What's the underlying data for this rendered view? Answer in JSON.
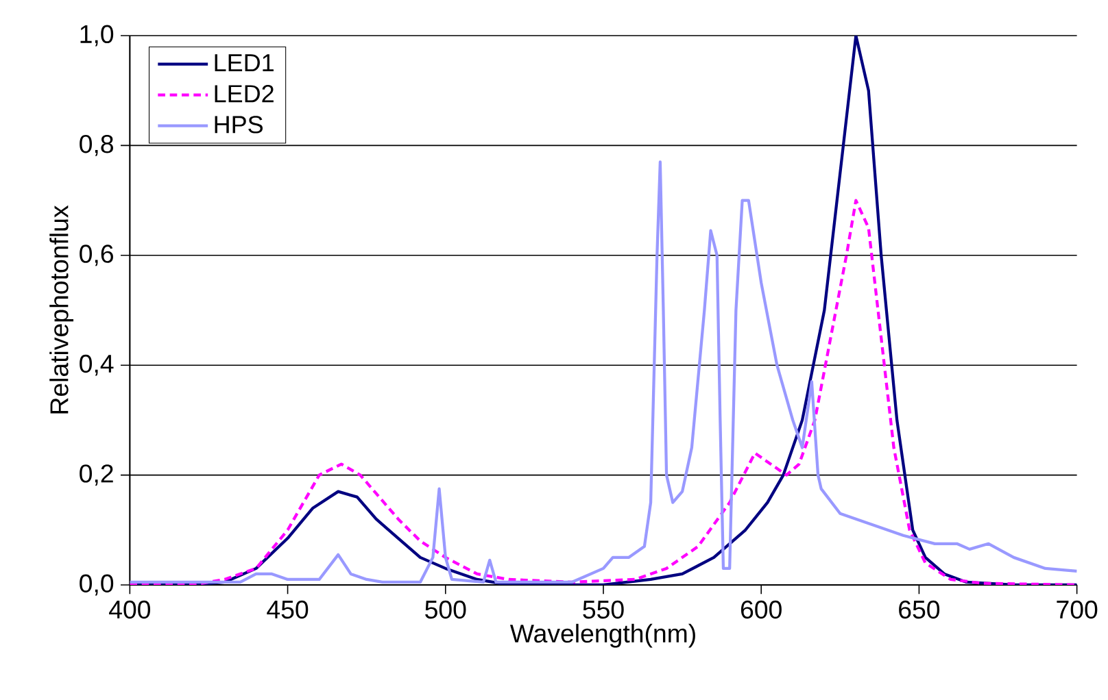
{
  "chart_data": {
    "type": "line",
    "xlabel": "Wavelength(nm)",
    "ylabel": "Relativephotonflux",
    "xlim": [
      400,
      700
    ],
    "xticks": [
      400,
      450,
      500,
      550,
      600,
      650,
      700
    ],
    "ylim": [
      0,
      1
    ],
    "yticks": [
      {
        "value": 0,
        "label": "0,0"
      },
      {
        "value": 0.2,
        "label": "0,2"
      },
      {
        "value": 0.4,
        "label": "0,4"
      },
      {
        "value": 0.6,
        "label": "0,6"
      },
      {
        "value": 0.8,
        "label": "0,8"
      },
      {
        "value": 1,
        "label": "1,0"
      }
    ],
    "grid": "y",
    "legend": "top left",
    "marker": "none",
    "series": [
      {
        "name": "LED1",
        "color": "#000080",
        "line_style": "solid",
        "x": [
          400,
          420,
          430,
          440,
          450,
          458,
          466,
          472,
          478,
          485,
          492,
          500,
          510,
          520,
          550,
          565,
          575,
          585,
          595,
          602,
          607,
          613,
          620,
          626,
          630,
          634,
          638,
          643,
          648,
          652,
          658,
          665,
          680,
          700
        ],
        "values": [
          0,
          0,
          0.005,
          0.03,
          0.085,
          0.14,
          0.17,
          0.16,
          0.12,
          0.085,
          0.05,
          0.03,
          0.01,
          0,
          0,
          0.01,
          0.02,
          0.05,
          0.1,
          0.15,
          0.2,
          0.3,
          0.5,
          0.8,
          1.0,
          0.9,
          0.6,
          0.3,
          0.1,
          0.05,
          0.02,
          0.005,
          0,
          0
        ]
      },
      {
        "name": "LED2",
        "color": "#ff00ff",
        "line_style": "dashed",
        "x": [
          400,
          420,
          430,
          440,
          450,
          460,
          467,
          473,
          479,
          485,
          492,
          500,
          510,
          520,
          540,
          560,
          570,
          580,
          590,
          598,
          603,
          608,
          612,
          617,
          622,
          627,
          630,
          634,
          638,
          642,
          647,
          652,
          660,
          670,
          700
        ],
        "values": [
          0,
          0,
          0.01,
          0.03,
          0.1,
          0.2,
          0.22,
          0.2,
          0.16,
          0.12,
          0.08,
          0.05,
          0.02,
          0.01,
          0.005,
          0.01,
          0.03,
          0.07,
          0.15,
          0.24,
          0.22,
          0.2,
          0.22,
          0.3,
          0.45,
          0.6,
          0.7,
          0.65,
          0.45,
          0.25,
          0.1,
          0.04,
          0.01,
          0.003,
          0
        ]
      },
      {
        "name": "HPS",
        "color": "#9999ff",
        "line_style": "solid",
        "x": [
          400,
          435,
          440,
          445,
          450,
          460,
          466,
          470,
          475,
          480,
          492,
          496,
          498,
          500,
          502,
          512,
          514,
          516,
          540,
          550,
          553,
          558,
          563,
          565,
          567,
          568,
          569,
          570,
          572,
          575,
          578,
          582,
          584,
          586,
          587,
          588,
          590,
          592,
          594,
          596,
          600,
          605,
          610,
          613,
          616,
          618,
          619,
          625,
          635,
          645,
          655,
          662,
          666,
          672,
          680,
          690,
          700
        ],
        "values": [
          0.005,
          0.005,
          0.02,
          0.02,
          0.01,
          0.01,
          0.055,
          0.02,
          0.01,
          0.005,
          0.005,
          0.05,
          0.175,
          0.05,
          0.01,
          0.005,
          0.045,
          0.005,
          0.005,
          0.03,
          0.05,
          0.05,
          0.07,
          0.15,
          0.6,
          0.77,
          0.5,
          0.2,
          0.15,
          0.17,
          0.25,
          0.5,
          0.645,
          0.6,
          0.3,
          0.03,
          0.03,
          0.5,
          0.7,
          0.7,
          0.55,
          0.4,
          0.3,
          0.25,
          0.37,
          0.2,
          0.175,
          0.13,
          0.11,
          0.09,
          0.075,
          0.075,
          0.065,
          0.075,
          0.05,
          0.03,
          0.025
        ]
      }
    ]
  }
}
